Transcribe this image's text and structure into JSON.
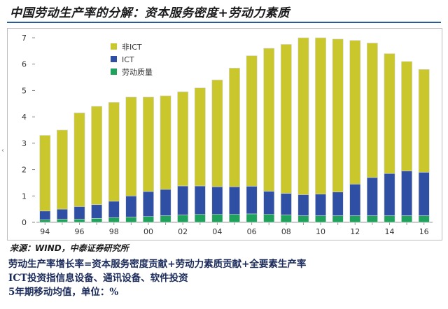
{
  "title": "中国劳动生产率的分解：资本服务密度+劳动力素质",
  "source": "来源：WIND，中泰证券研究所",
  "notes": [
    "劳动生产率增长率=资本服务密度贡献+劳动力素质贡献+全要素生产率",
    "ICT投资指信息设备、通讯设备、软件投资",
    "5年期移动均值，单位：%"
  ],
  "colors": {
    "non_ict": "#c9c72c",
    "ict": "#2e4fa3",
    "labor_quality": "#1fa35c",
    "bar_outline": "#d8d8d8"
  },
  "chart_data": {
    "type": "bar",
    "stacked": true,
    "categories": [
      "94",
      "95",
      "96",
      "97",
      "98",
      "99",
      "00",
      "01",
      "02",
      "03",
      "04",
      "05",
      "06",
      "07",
      "08",
      "09",
      "10",
      "11",
      "12",
      "13",
      "14",
      "15",
      "16"
    ],
    "x_tick_labels": [
      "94",
      "96",
      "98",
      "00",
      "02",
      "04",
      "06",
      "08",
      "10",
      "12",
      "14",
      "16"
    ],
    "series": [
      {
        "name": "劳动质量",
        "color": "#1fa35c",
        "values": [
          0.1,
          0.12,
          0.12,
          0.15,
          0.18,
          0.2,
          0.22,
          0.25,
          0.28,
          0.3,
          0.3,
          0.3,
          0.32,
          0.3,
          0.28,
          0.25,
          0.25,
          0.25,
          0.25,
          0.25,
          0.25,
          0.25,
          0.25
        ]
      },
      {
        "name": "ICT",
        "color": "#2e4fa3",
        "values": [
          0.33,
          0.38,
          0.48,
          0.52,
          0.62,
          0.8,
          0.95,
          1.0,
          1.1,
          1.08,
          1.05,
          1.05,
          1.05,
          0.88,
          0.82,
          0.8,
          0.82,
          0.9,
          1.2,
          1.45,
          1.6,
          1.7,
          1.65
        ]
      },
      {
        "name": "非ICT",
        "color": "#c9c72c",
        "values": [
          2.87,
          3.0,
          3.55,
          3.73,
          3.75,
          3.75,
          3.58,
          3.55,
          3.57,
          3.72,
          4.05,
          4.5,
          4.95,
          5.42,
          5.65,
          5.95,
          5.93,
          5.8,
          5.45,
          5.1,
          4.55,
          4.15,
          3.9
        ]
      }
    ],
    "totals": [
      3.3,
      3.5,
      4.15,
      4.4,
      4.55,
      4.75,
      4.75,
      4.8,
      4.95,
      5.1,
      5.4,
      5.85,
      6.32,
      6.6,
      6.75,
      7.0,
      7.0,
      6.95,
      6.9,
      6.8,
      6.4,
      6.1,
      5.8
    ],
    "ylim": [
      0,
      7
    ],
    "yticks": [
      0,
      1,
      2,
      3,
      4,
      5,
      6,
      7
    ],
    "grid": false,
    "legend_position": "top-left",
    "legend_order": [
      "非ICT",
      "ICT",
      "劳动质量"
    ],
    "xlabel": "",
    "ylabel": ""
  }
}
